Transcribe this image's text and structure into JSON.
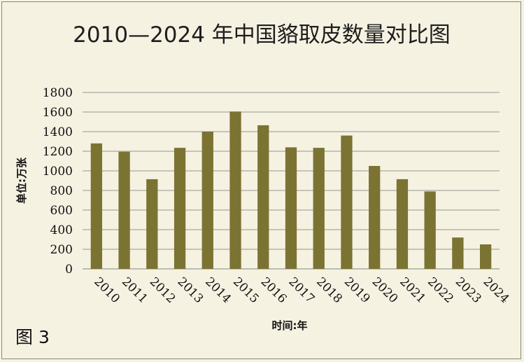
{
  "chart_data": {
    "type": "bar",
    "title": "2010—2024 年中国貉取皮数量对比图",
    "ylabel": "单位:万张",
    "xlabel": "时间:年",
    "figure_label": "图 3",
    "categories": [
      "2010",
      "2011",
      "2012",
      "2013",
      "2014",
      "2015",
      "2016",
      "2017",
      "2018",
      "2019",
      "2020",
      "2021",
      "2022",
      "2023",
      "2024"
    ],
    "values": [
      1280,
      1195,
      915,
      1235,
      1400,
      1605,
      1465,
      1240,
      1235,
      1360,
      1050,
      915,
      790,
      320,
      250
    ],
    "ylim": [
      0,
      1800
    ],
    "yticks": [
      0,
      200,
      400,
      600,
      800,
      1000,
      1200,
      1400,
      1600,
      1800
    ],
    "grid": true,
    "legend": "none",
    "bar_color": "#7b7332",
    "grid_color": "#a9a9a2"
  }
}
